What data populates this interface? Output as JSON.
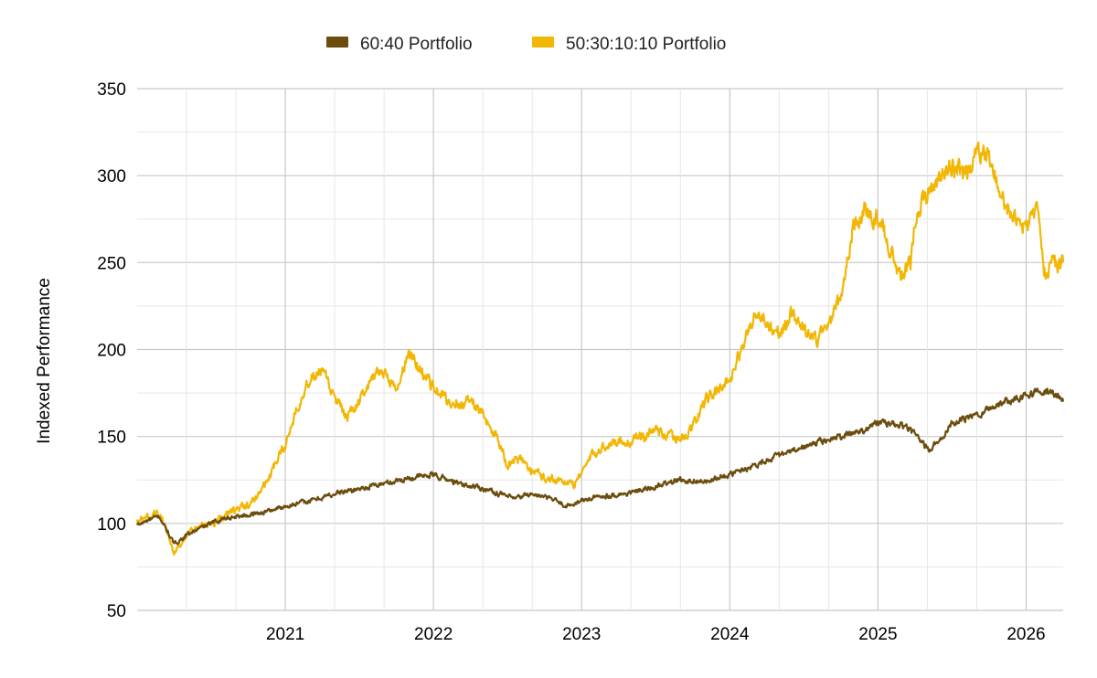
{
  "chart_data": {
    "type": "line",
    "title": "",
    "xlabel": "",
    "ylabel": "Indexed Performance",
    "ylim": [
      50,
      350
    ],
    "yticks": [
      50,
      100,
      150,
      200,
      250,
      300,
      350
    ],
    "xlim": [
      2020.0,
      2026.25
    ],
    "xticks": [
      {
        "value": 2021,
        "label": "2021"
      },
      {
        "value": 2022,
        "label": "2022"
      },
      {
        "value": 2023,
        "label": "2023"
      },
      {
        "value": 2024,
        "label": "2024"
      },
      {
        "value": 2025,
        "label": "2025"
      },
      {
        "value": 2026,
        "label": "2026"
      }
    ],
    "grid": true,
    "legend_position": "top-center",
    "series": [
      {
        "name": "60:40 Portfolio",
        "color": "#6b4e0e",
        "x": [
          2020.0,
          2020.08,
          2020.15,
          2020.2,
          2020.25,
          2020.33,
          2020.42,
          2020.5,
          2020.58,
          2020.67,
          2020.75,
          2020.83,
          2020.92,
          2021.0,
          2021.17,
          2021.33,
          2021.5,
          2021.67,
          2021.83,
          2022.0,
          2022.1,
          2022.2,
          2022.3,
          2022.45,
          2022.55,
          2022.65,
          2022.8,
          2022.9,
          2023.0,
          2023.15,
          2023.3,
          2023.5,
          2023.65,
          2023.85,
          2024.0,
          2024.15,
          2024.3,
          2024.45,
          2024.6,
          2024.75,
          2024.9,
          2025.0,
          2025.1,
          2025.2,
          2025.28,
          2025.35,
          2025.5,
          2025.7,
          2025.85,
          2026.0,
          2026.1,
          2026.18,
          2026.25
        ],
        "values": [
          99,
          102,
          104,
          96,
          88,
          93,
          97,
          100,
          103,
          104,
          105,
          106,
          108,
          110,
          113,
          117,
          120,
          123,
          126,
          128,
          125,
          122,
          121,
          117,
          114,
          117,
          114,
          110,
          113,
          116,
          117,
          121,
          125,
          124,
          128,
          133,
          138,
          142,
          147,
          150,
          154,
          158,
          157,
          155,
          148,
          142,
          157,
          164,
          170,
          174,
          176,
          175,
          170
        ]
      },
      {
        "name": "50:30:10:10 Portfolio",
        "color": "#f2b705",
        "x": [
          2020.0,
          2020.08,
          2020.15,
          2020.2,
          2020.25,
          2020.33,
          2020.42,
          2020.5,
          2020.58,
          2020.67,
          2020.75,
          2020.83,
          2020.9,
          2021.0,
          2021.08,
          2021.17,
          2021.25,
          2021.33,
          2021.42,
          2021.5,
          2021.58,
          2021.67,
          2021.75,
          2021.83,
          2021.92,
          2022.0,
          2022.1,
          2022.2,
          2022.25,
          2022.33,
          2022.42,
          2022.5,
          2022.58,
          2022.67,
          2022.75,
          2022.85,
          2022.95,
          2023.0,
          2023.08,
          2023.17,
          2023.25,
          2023.33,
          2023.42,
          2023.5,
          2023.58,
          2023.67,
          2023.75,
          2023.83,
          2023.92,
          2024.0,
          2024.08,
          2024.17,
          2024.25,
          2024.33,
          2024.42,
          2024.5,
          2024.58,
          2024.67,
          2024.75,
          2024.83,
          2024.92,
          2025.0,
          2025.08,
          2025.15,
          2025.22,
          2025.25,
          2025.33,
          2025.42,
          2025.5,
          2025.58,
          2025.67,
          2025.75,
          2025.83,
          2025.92,
          2026.0,
          2026.08,
          2026.12,
          2026.17,
          2026.22,
          2026.25
        ],
        "values": [
          101,
          104,
          106,
          95,
          82,
          93,
          98,
          100,
          104,
          108,
          110,
          118,
          128,
          145,
          168,
          183,
          188,
          172,
          160,
          170,
          182,
          188,
          175,
          198,
          188,
          178,
          170,
          168,
          172,
          162,
          152,
          133,
          137,
          130,
          127,
          125,
          122,
          130,
          140,
          145,
          148,
          147,
          150,
          155,
          150,
          148,
          155,
          170,
          178,
          183,
          200,
          222,
          215,
          210,
          220,
          212,
          205,
          215,
          230,
          270,
          280,
          275,
          260,
          240,
          250,
          275,
          290,
          300,
          305,
          300,
          312,
          310,
          290,
          275,
          270,
          280,
          245,
          250,
          248,
          250
        ]
      }
    ]
  }
}
